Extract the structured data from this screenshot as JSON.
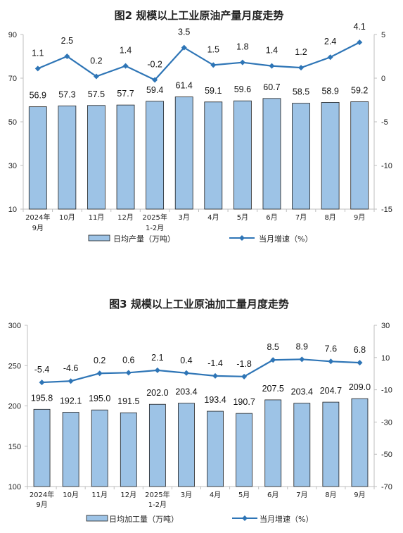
{
  "chart_data": [
    {
      "type": "bar",
      "title": "图2  规模以上工业原油产量月度走势",
      "categories": [
        [
          "2024年",
          "9月"
        ],
        [
          "10月"
        ],
        [
          "11月"
        ],
        [
          "12月"
        ],
        [
          "2025年",
          "1-2月"
        ],
        [
          "3月"
        ],
        [
          "4月"
        ],
        [
          "5月"
        ],
        [
          "6月"
        ],
        [
          "7月"
        ],
        [
          "8月"
        ],
        [
          "9月"
        ]
      ],
      "series": [
        {
          "name": "日均产量（万吨）",
          "type": "bar",
          "axis": "left",
          "values": [
            56.9,
            57.3,
            57.5,
            57.7,
            59.4,
            61.4,
            59.1,
            59.6,
            60.7,
            58.5,
            58.9,
            59.2
          ],
          "labels": [
            "56.9",
            "57.3",
            "57.5",
            "57.7",
            "59.4",
            "61.4",
            "59.1",
            "59.6",
            "60.7",
            "58.5",
            "58.9",
            "59.2"
          ]
        },
        {
          "name": "当月增速（%）",
          "type": "line",
          "axis": "right",
          "values": [
            1.1,
            2.5,
            0.2,
            1.4,
            -0.2,
            3.5,
            1.5,
            1.8,
            1.4,
            1.2,
            2.4,
            4.1
          ],
          "labels": [
            "1.1",
            "2.5",
            "0.2",
            "1.4",
            "-0.2",
            "3.5",
            "1.5",
            "1.8",
            "1.4",
            "1.2",
            "2.4",
            "4.1"
          ]
        }
      ],
      "y_left": {
        "min": 10,
        "max": 90,
        "ticks": [
          10,
          30,
          50,
          70,
          90
        ]
      },
      "y_right": {
        "min": -15,
        "max": 5,
        "ticks": [
          -15,
          -10,
          -5,
          0,
          5
        ]
      },
      "legend_position": "bottom",
      "grid": false
    },
    {
      "type": "bar",
      "title": "图3  规模以上工业原油加工量月度走势",
      "categories": [
        [
          "2024年",
          "9月"
        ],
        [
          "10月"
        ],
        [
          "11月"
        ],
        [
          "12月"
        ],
        [
          "2025年",
          "1-2月"
        ],
        [
          "3月"
        ],
        [
          "4月"
        ],
        [
          "5月"
        ],
        [
          "6月"
        ],
        [
          "7月"
        ],
        [
          "8月"
        ],
        [
          "9月"
        ]
      ],
      "series": [
        {
          "name": "日均加工量（万吨）",
          "type": "bar",
          "axis": "left",
          "values": [
            195.8,
            192.1,
            195.0,
            191.5,
            202.0,
            203.4,
            193.4,
            190.7,
            207.5,
            203.4,
            204.7,
            209.0
          ],
          "labels": [
            "195.8",
            "192.1",
            "195.0",
            "191.5",
            "202.0",
            "203.4",
            "193.4",
            "190.7",
            "207.5",
            "203.4",
            "204.7",
            "209.0"
          ]
        },
        {
          "name": "当月增速（%）",
          "type": "line",
          "axis": "right",
          "values": [
            -5.4,
            -4.6,
            0.2,
            0.6,
            2.1,
            0.4,
            -1.4,
            -1.8,
            8.5,
            8.9,
            7.6,
            6.8
          ],
          "labels": [
            "-5.4",
            "-4.6",
            "0.2",
            "0.6",
            "2.1",
            "0.4",
            "-1.4",
            "-1.8",
            "8.5",
            "8.9",
            "7.6",
            "6.8"
          ]
        }
      ],
      "y_left": {
        "min": 100,
        "max": 300,
        "ticks": [
          100,
          150,
          200,
          250,
          300
        ]
      },
      "y_right": {
        "min": -70,
        "max": 30,
        "ticks": [
          -70,
          -50,
          -30,
          -10,
          10,
          30
        ]
      },
      "legend_position": "bottom",
      "grid": false
    }
  ],
  "colors": {
    "bar_fill": "#9DC3E6",
    "bar_stroke": "#1F1F1F",
    "line": "#2E75B6",
    "axis": "#BFBFBF",
    "text": "#222222"
  }
}
